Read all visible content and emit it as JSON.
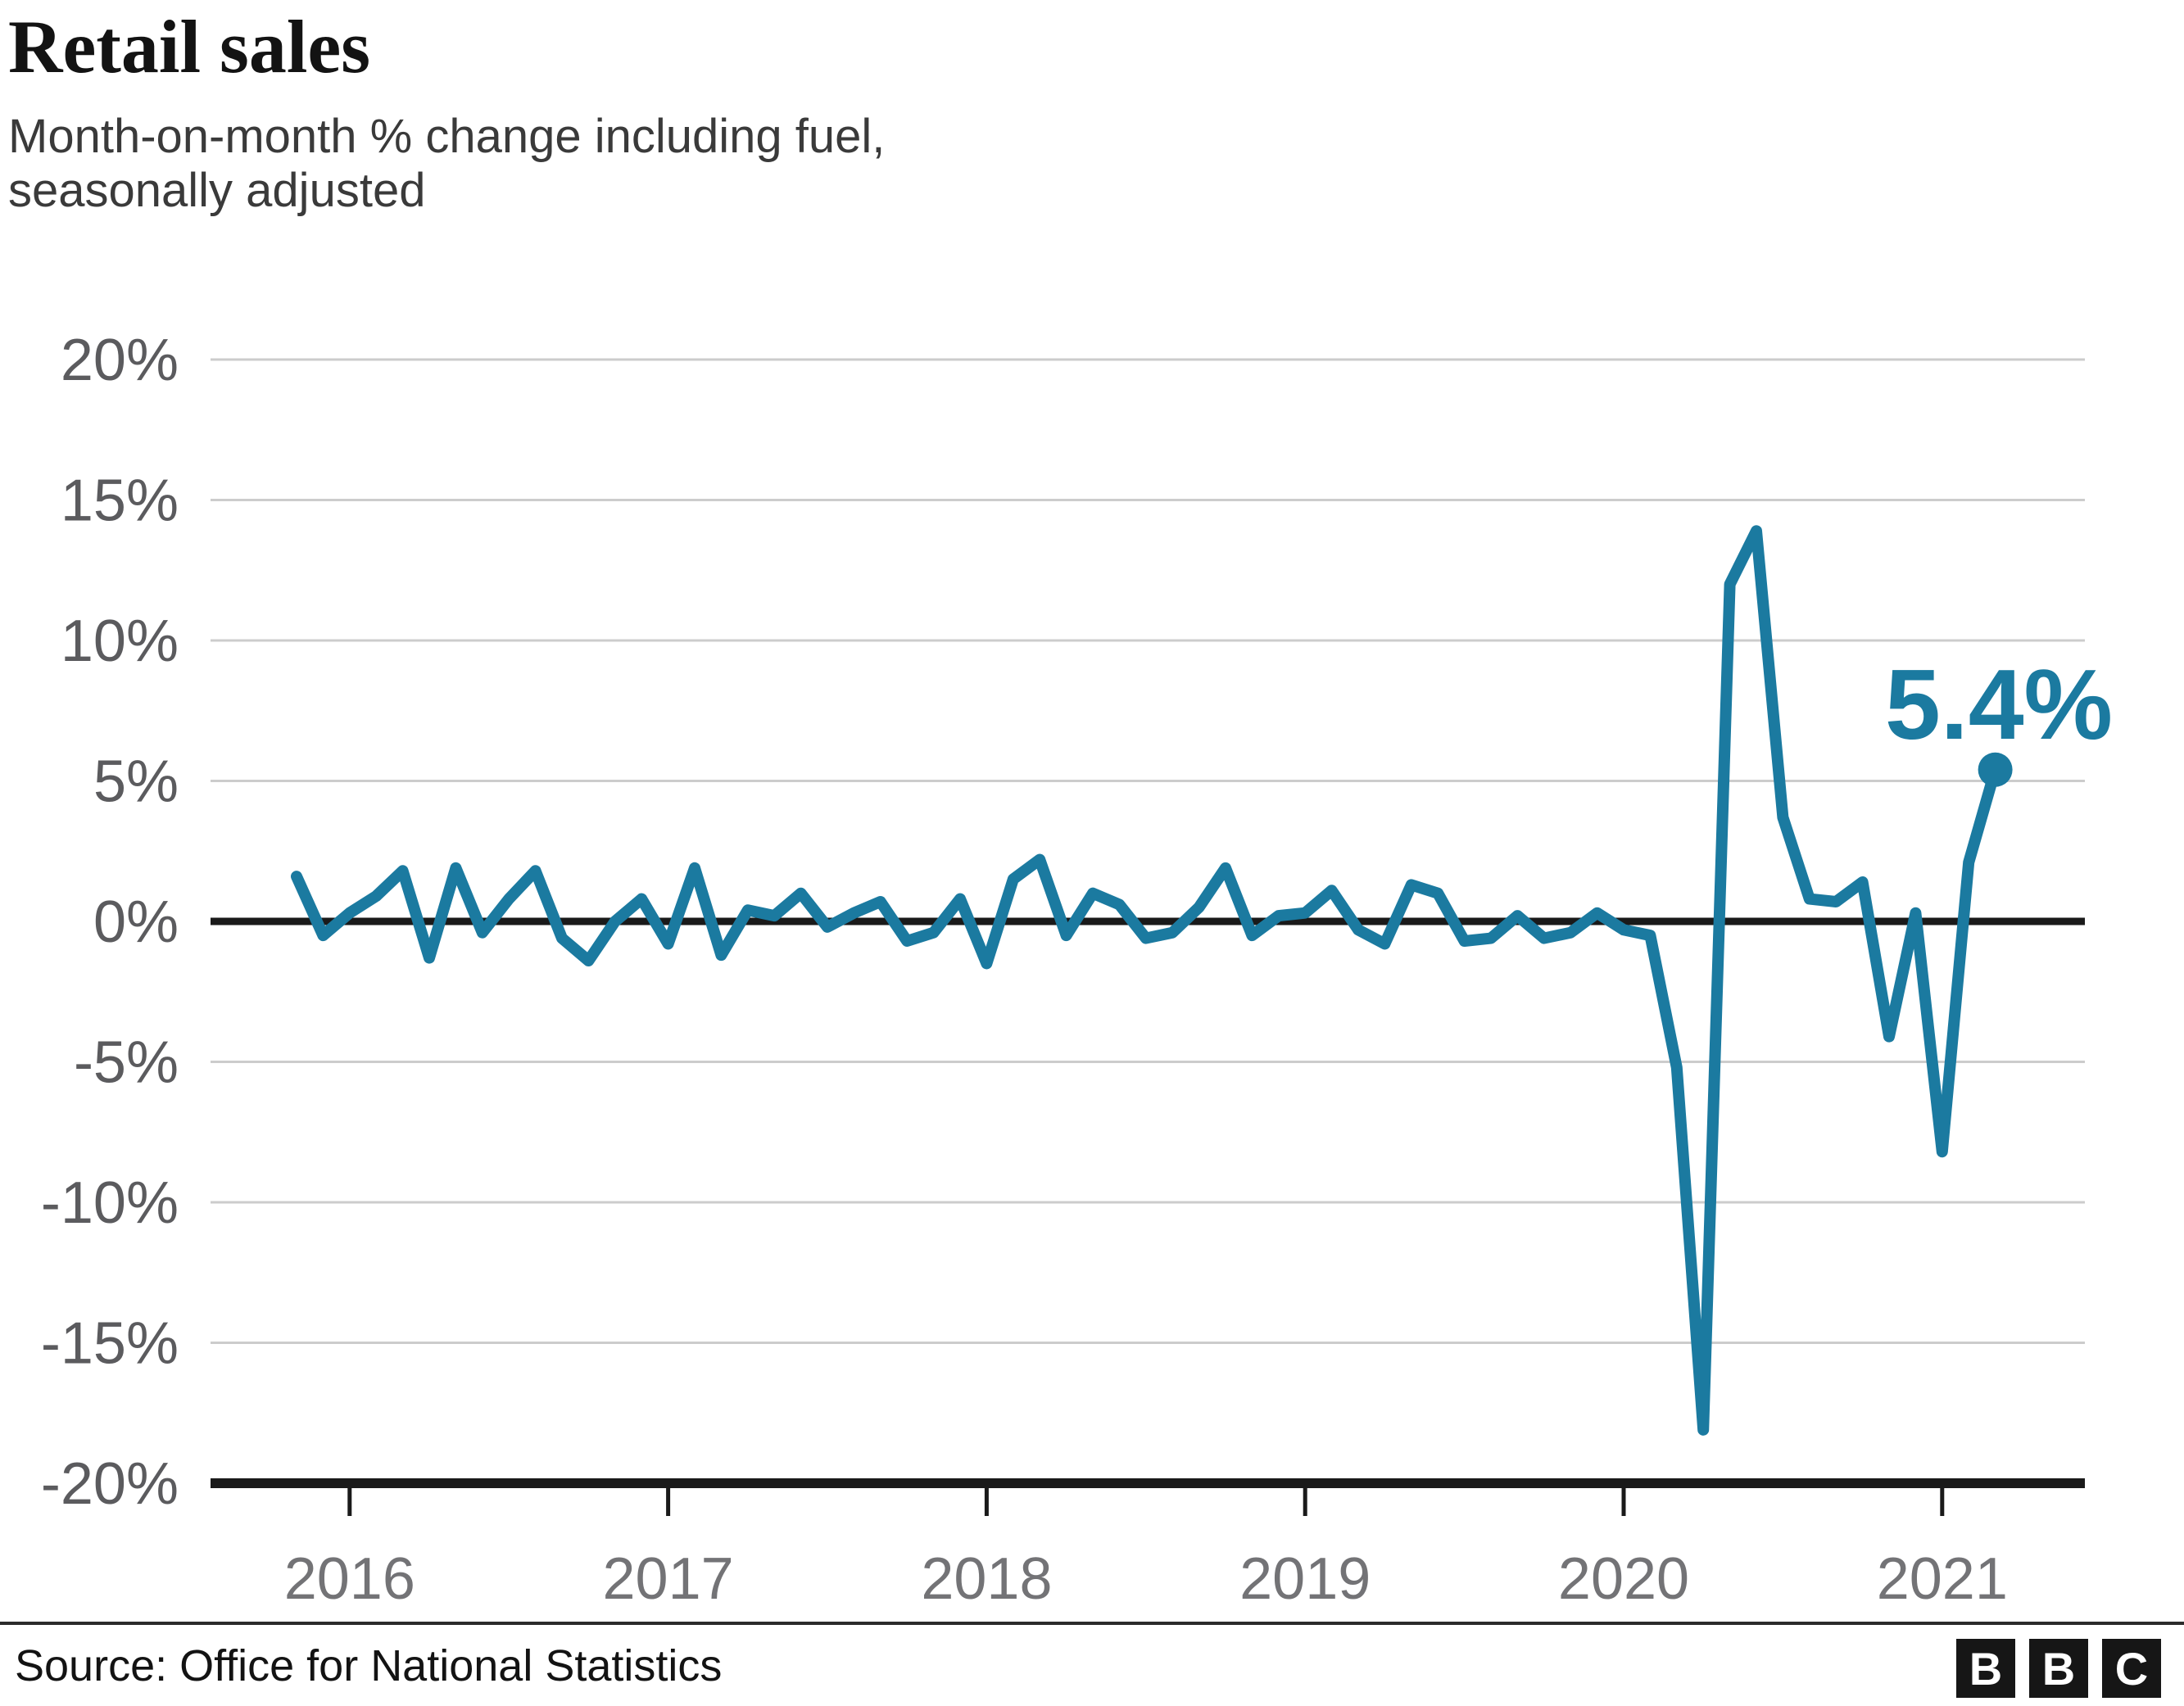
{
  "header": {
    "title": "Retail sales",
    "subtitle_line1": "Month-on-month % change including fuel,",
    "subtitle_line2": "seasonally adjusted"
  },
  "chart_data": {
    "type": "line",
    "title": "Retail sales",
    "subtitle": "Month-on-month % change including fuel, seasonally adjusted",
    "unit": "%",
    "ylim": [
      -20,
      20
    ],
    "grid": "horizontal",
    "legend": "none",
    "y_ticks": {
      "values": [
        20,
        15,
        10,
        5,
        0,
        -5,
        -10,
        -15,
        -20
      ],
      "labels": [
        "20%",
        "15%",
        "10%",
        "5%",
        "0%",
        "-5%",
        "-10%",
        "-15%",
        "-20%"
      ]
    },
    "x_tick_labels": [
      "2016",
      "2017",
      "2018",
      "2019",
      "2020",
      "2021"
    ],
    "x": [
      "2015-11",
      "2015-12",
      "2016-01",
      "2016-02",
      "2016-03",
      "2016-04",
      "2016-05",
      "2016-06",
      "2016-07",
      "2016-08",
      "2016-09",
      "2016-10",
      "2016-11",
      "2016-12",
      "2017-01",
      "2017-02",
      "2017-03",
      "2017-04",
      "2017-05",
      "2017-06",
      "2017-07",
      "2017-08",
      "2017-09",
      "2017-10",
      "2017-11",
      "2017-12",
      "2018-01",
      "2018-02",
      "2018-03",
      "2018-04",
      "2018-05",
      "2018-06",
      "2018-07",
      "2018-08",
      "2018-09",
      "2018-10",
      "2018-11",
      "2018-12",
      "2019-01",
      "2019-02",
      "2019-03",
      "2019-04",
      "2019-05",
      "2019-06",
      "2019-07",
      "2019-08",
      "2019-09",
      "2019-10",
      "2019-11",
      "2019-12",
      "2020-01",
      "2020-02",
      "2020-03",
      "2020-04",
      "2020-05",
      "2020-06",
      "2020-07",
      "2020-08",
      "2020-09",
      "2020-10",
      "2020-11",
      "2020-12",
      "2021-01",
      "2021-02",
      "2021-03"
    ],
    "values": [
      1.6,
      -0.5,
      0.3,
      0.9,
      1.8,
      -1.3,
      1.9,
      -0.4,
      0.8,
      1.8,
      -0.6,
      -1.4,
      0.0,
      0.8,
      -0.8,
      1.9,
      -1.2,
      0.4,
      0.2,
      1.0,
      -0.2,
      0.3,
      0.7,
      -0.7,
      -0.4,
      0.8,
      -1.5,
      1.5,
      2.2,
      -0.5,
      1.0,
      0.6,
      -0.6,
      -0.4,
      0.5,
      1.9,
      -0.5,
      0.2,
      0.3,
      1.1,
      -0.3,
      -0.8,
      1.3,
      1.0,
      -0.7,
      -0.6,
      0.2,
      -0.6,
      -0.4,
      0.3,
      -0.3,
      -0.5,
      -5.2,
      -18.1,
      12.0,
      13.9,
      3.7,
      0.8,
      0.7,
      1.4,
      -4.1,
      0.3,
      -8.2,
      2.1,
      5.4
    ],
    "annotation": {
      "label": "5.4%",
      "x": "2021-03",
      "value": 5.4
    },
    "colors": {
      "line": "#1B7AA0",
      "grid": "#cccccc",
      "axis": "#1a1a1a",
      "y_tick_text": "#5b5b5e",
      "x_tick_text": "#737376"
    }
  },
  "footer": {
    "source": "Source: Office for National Statistics",
    "logo_letters": [
      "B",
      "B",
      "C"
    ]
  }
}
